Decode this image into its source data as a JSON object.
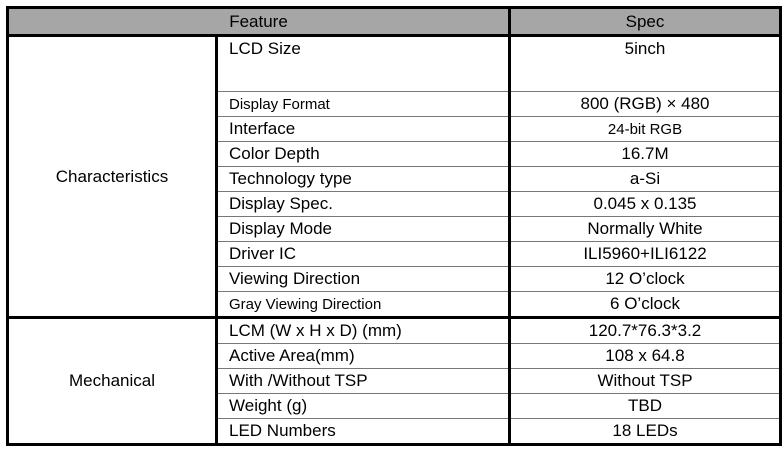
{
  "header": {
    "feature": "Feature",
    "spec": "Spec"
  },
  "groups": [
    {
      "label": "Characteristics",
      "rows": [
        {
          "feature": "LCD Size",
          "spec": "5inch"
        },
        {
          "feature": "Display Format",
          "spec": "800 (RGB) × 480"
        },
        {
          "feature": "Interface",
          "spec": "24-bit RGB"
        },
        {
          "feature": "Color Depth",
          "spec": "16.7M"
        },
        {
          "feature": "Technology type",
          "spec": "a-Si"
        },
        {
          "feature": "Display Spec.",
          "spec": "0.045 x 0.135"
        },
        {
          "feature": "Display Mode",
          "spec": "Normally White"
        },
        {
          "feature": "Driver IC",
          "spec": "ILI5960+ILI6122"
        },
        {
          "feature": "Viewing Direction",
          "spec": "12 O’clock"
        },
        {
          "feature": "Gray Viewing Direction",
          "spec": "6 O’clock"
        }
      ]
    },
    {
      "label": "Mechanical",
      "rows": [
        {
          "feature": "LCM (W x H x D) (mm)",
          "spec": "120.7*76.3*3.2"
        },
        {
          "feature": "Active Area(mm)",
          "spec": "108 x 64.8"
        },
        {
          "feature": "With /Without TSP",
          "spec": "Without TSP"
        },
        {
          "feature": "Weight (g)",
          "spec": "TBD"
        },
        {
          "feature": "LED Numbers",
          "spec": "18 LEDs"
        }
      ]
    }
  ]
}
